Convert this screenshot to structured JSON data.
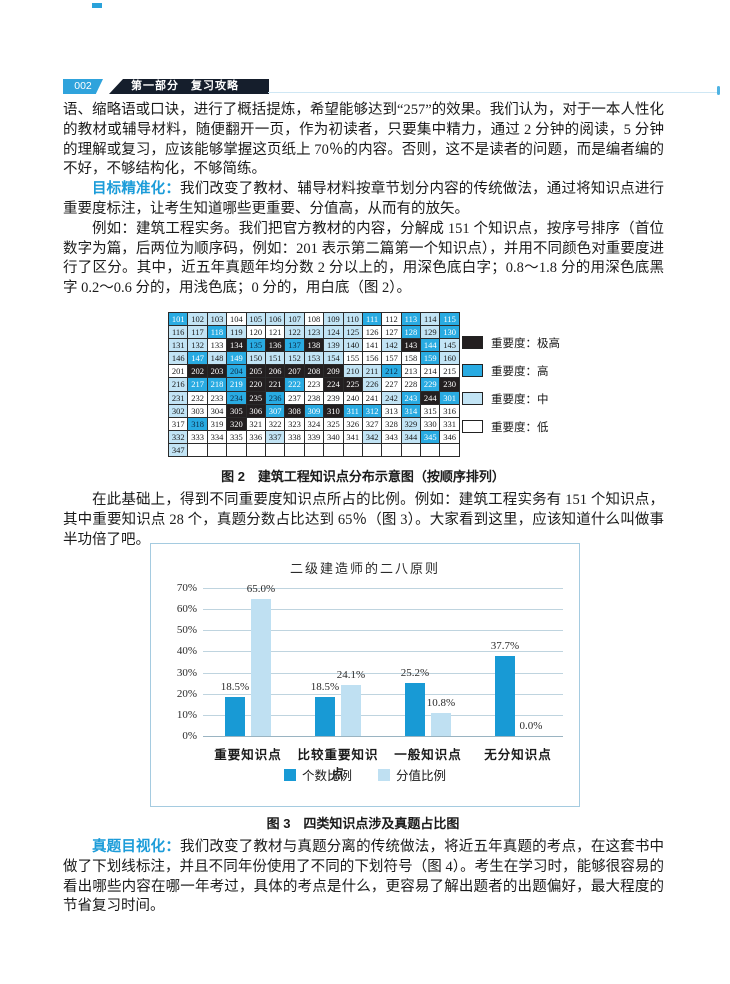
{
  "header": {
    "page_number": "002",
    "section_title": "第一部分　复习攻略",
    "accent_color": "#2FA3DC",
    "bar_color": "#151E2C"
  },
  "paragraphs": {
    "p1": "语、缩略语或口诀，进行了概括提炼，希望能够达到“257”的效果。我们认为，对于一本人性化的教材或辅导材料，随便翻开一页，作为初读者，只要集中精力，通过 2 分钟的阅读，5 分钟的理解或复习，应该能够掌握这页纸上 70％的内容。否则，这不是读者的问题，而是编者编的不好，不够结构化，不够简练。",
    "p2_lead": "目标精准化：",
    "p2_rest": "我们改变了教材、辅导材料按章节划分内容的传统做法，通过将知识点进行重要度标注，让考生知道哪些更重要、分值高，从而有的放矢。",
    "p3": "例如：建筑工程实务。我们把官方教材的内容，分解成 151 个知识点，按序号排序（首位数字为篇，后两位为顺序码，例如：201 表示第二篇第一个知识点），并用不同颜色对重要度进行了区分。其中，近五年真题年均分数 2 分以上的，用深色底白字；0.8～1.8 分的用深色底黑字 0.2～0.6 分的，用浅色底；0 分的，用白底（图 2）。",
    "p4": "在此基础上，得到不同重要度知识点所占的比例。例如：建筑工程实务有 151 个知识点，其中重要知识点 28 个，真题分数占比达到 65％（图 3）。大家看到这里，应该知道什么叫做事半功倍了吧。",
    "p5_lead": "真题目视化：",
    "p5_rest": "我们改变了教材与真题分离的传统做法，将近五年真题的考点，在这套书中做了下划线标注，并且不同年份使用了不同的下划符号（图 4）。考生在学习时，能够很容易的看出哪些内容在哪一年考过，具体的考点是什么，更容易了解出题者的出题偏好，最大程度的节省复习时间。"
  },
  "figure2": {
    "caption": "图 2　建筑工程知识点分布示意图（按顺序排列）",
    "category_colors": {
      "xh": "#231F20",
      "g": "#29ABE2",
      "m": "#C2E4F5",
      "d": "#FFFFFF"
    },
    "legend": [
      {
        "label": "重要度：极高",
        "color": "#231F20"
      },
      {
        "label": "重要度：高",
        "color": "#29ABE2"
      },
      {
        "label": "重要度：中",
        "color": "#C2E4F5"
      },
      {
        "label": "重要度：低",
        "color": "#FFFFFF"
      }
    ],
    "grid_rows": [
      [
        [
          "101",
          "g"
        ],
        [
          "102",
          "m"
        ],
        [
          "103",
          "m"
        ],
        [
          "104",
          "d"
        ],
        [
          "105",
          "m"
        ],
        [
          "106",
          "m"
        ],
        [
          "107",
          "m"
        ],
        [
          "108",
          "d"
        ],
        [
          "109",
          "m"
        ],
        [
          "110",
          "m"
        ],
        [
          "111",
          "g"
        ],
        [
          "112",
          "d"
        ],
        [
          "113",
          "g"
        ],
        [
          "114",
          "m"
        ],
        [
          "115",
          "g"
        ]
      ],
      [
        [
          "116",
          "m"
        ],
        [
          "117",
          "m"
        ],
        [
          "118",
          "g"
        ],
        [
          "119",
          "m"
        ],
        [
          "120",
          "d"
        ],
        [
          "121",
          "d"
        ],
        [
          "122",
          "m"
        ],
        [
          "123",
          "m"
        ],
        [
          "124",
          "m"
        ],
        [
          "125",
          "m"
        ],
        [
          "126",
          "d"
        ],
        [
          "127",
          "d"
        ],
        [
          "128",
          "g"
        ],
        [
          "129",
          "m"
        ],
        [
          "130",
          "g"
        ]
      ],
      [
        [
          "131",
          "m"
        ],
        [
          "132",
          "m"
        ],
        [
          "133",
          "d"
        ],
        [
          "134",
          "xh"
        ],
        [
          "135",
          "gd"
        ],
        [
          "136",
          "xh"
        ],
        [
          "137",
          "gd"
        ],
        [
          "138",
          "xh"
        ],
        [
          "139",
          "m"
        ],
        [
          "140",
          "m"
        ],
        [
          "141",
          "d"
        ],
        [
          "142",
          "m"
        ],
        [
          "143",
          "xh"
        ],
        [
          "144",
          "g"
        ],
        [
          "145",
          "m"
        ]
      ],
      [
        [
          "146",
          "m"
        ],
        [
          "147",
          "g"
        ],
        [
          "148",
          "m"
        ],
        [
          "149",
          "g"
        ],
        [
          "150",
          "m"
        ],
        [
          "151",
          "m"
        ],
        [
          "152",
          "m"
        ],
        [
          "153",
          "m"
        ],
        [
          "154",
          "m"
        ],
        [
          "155",
          "d"
        ],
        [
          "156",
          "d"
        ],
        [
          "157",
          "d"
        ],
        [
          "158",
          "d"
        ],
        [
          "159",
          "g"
        ],
        [
          "160",
          "m"
        ]
      ],
      [
        [
          "201",
          "d"
        ],
        [
          "202",
          "xh"
        ],
        [
          "203",
          "xh"
        ],
        [
          "204",
          "gd"
        ],
        [
          "205",
          "xh"
        ],
        [
          "206",
          "xh"
        ],
        [
          "207",
          "xh"
        ],
        [
          "208",
          "xh"
        ],
        [
          "209",
          "xh"
        ],
        [
          "210",
          "m"
        ],
        [
          "211",
          "m"
        ],
        [
          "212",
          "gd"
        ],
        [
          "213",
          "d"
        ],
        [
          "214",
          "d"
        ],
        [
          "215",
          "d"
        ]
      ],
      [
        [
          "216",
          "m"
        ],
        [
          "217",
          "g"
        ],
        [
          "218",
          "g"
        ],
        [
          "219",
          "g"
        ],
        [
          "220",
          "xh"
        ],
        [
          "221",
          "xh"
        ],
        [
          "222",
          "g"
        ],
        [
          "223",
          "d"
        ],
        [
          "224",
          "xh"
        ],
        [
          "225",
          "xh"
        ],
        [
          "226",
          "m"
        ],
        [
          "227",
          "d"
        ],
        [
          "228",
          "d"
        ],
        [
          "229",
          "g"
        ],
        [
          "230",
          "xh"
        ]
      ],
      [
        [
          "231",
          "m"
        ],
        [
          "232",
          "d"
        ],
        [
          "233",
          "d"
        ],
        [
          "234",
          "gd"
        ],
        [
          "235",
          "xh"
        ],
        [
          "236",
          "gd"
        ],
        [
          "237",
          "d"
        ],
        [
          "238",
          "d"
        ],
        [
          "239",
          "d"
        ],
        [
          "240",
          "d"
        ],
        [
          "241",
          "d"
        ],
        [
          "242",
          "m"
        ],
        [
          "243",
          "g"
        ],
        [
          "244",
          "xh"
        ],
        [
          "301",
          "g"
        ]
      ],
      [
        [
          "302",
          "m"
        ],
        [
          "303",
          "d"
        ],
        [
          "304",
          "d"
        ],
        [
          "305",
          "xh"
        ],
        [
          "306",
          "xh"
        ],
        [
          "307",
          "g"
        ],
        [
          "308",
          "xh"
        ],
        [
          "309",
          "g"
        ],
        [
          "310",
          "xh"
        ],
        [
          "311",
          "g"
        ],
        [
          "312",
          "g"
        ],
        [
          "313",
          "d"
        ],
        [
          "314",
          "g"
        ],
        [
          "315",
          "d"
        ],
        [
          "316",
          "d"
        ]
      ],
      [
        [
          "317",
          "d"
        ],
        [
          "318",
          "gd"
        ],
        [
          "319",
          "d"
        ],
        [
          "320",
          "xh"
        ],
        [
          "321",
          "d"
        ],
        [
          "322",
          "d"
        ],
        [
          "323",
          "d"
        ],
        [
          "324",
          "d"
        ],
        [
          "325",
          "d"
        ],
        [
          "326",
          "d"
        ],
        [
          "327",
          "d"
        ],
        [
          "328",
          "d"
        ],
        [
          "329",
          "m"
        ],
        [
          "330",
          "d"
        ],
        [
          "331",
          "d"
        ]
      ],
      [
        [
          "332",
          "m"
        ],
        [
          "333",
          "d"
        ],
        [
          "334",
          "d"
        ],
        [
          "335",
          "d"
        ],
        [
          "336",
          "d"
        ],
        [
          "337",
          "m"
        ],
        [
          "338",
          "d"
        ],
        [
          "339",
          "d"
        ],
        [
          "340",
          "d"
        ],
        [
          "341",
          "d"
        ],
        [
          "342",
          "m"
        ],
        [
          "343",
          "d"
        ],
        [
          "344",
          "m"
        ],
        [
          "345",
          "g"
        ],
        [
          "346",
          "d"
        ]
      ],
      [
        [
          "347",
          "m"
        ],
        [
          "",
          "e"
        ],
        [
          "",
          "e"
        ],
        [
          "",
          "e"
        ],
        [
          "",
          "e"
        ],
        [
          "",
          "e"
        ],
        [
          "",
          "e"
        ],
        [
          "",
          "e"
        ],
        [
          "",
          "e"
        ],
        [
          "",
          "e"
        ],
        [
          "",
          "e"
        ],
        [
          "",
          "e"
        ],
        [
          "",
          "e"
        ],
        [
          "",
          "e"
        ],
        [
          "",
          "e"
        ]
      ]
    ]
  },
  "figure3": {
    "caption": "图 3　四类知识点涉及真题占比图"
  },
  "chart_data": {
    "type": "bar",
    "title": "二级建造师的二八原则",
    "categories": [
      "重要知识点",
      "比较重要知识点",
      "一般知识点",
      "无分知识点"
    ],
    "series": [
      {
        "name": "个数比例",
        "color": "#189AD5",
        "values": [
          18.5,
          18.5,
          25.2,
          37.7
        ]
      },
      {
        "name": "分值比例",
        "color": "#BFE0F2",
        "values": [
          65.0,
          24.1,
          10.8,
          0.0
        ]
      }
    ],
    "ylim": [
      0,
      70
    ],
    "ytick_step": 10,
    "ytick_format": "{v}%",
    "value_label_format": "{v}%",
    "grid": true,
    "legend_position": "bottom"
  }
}
